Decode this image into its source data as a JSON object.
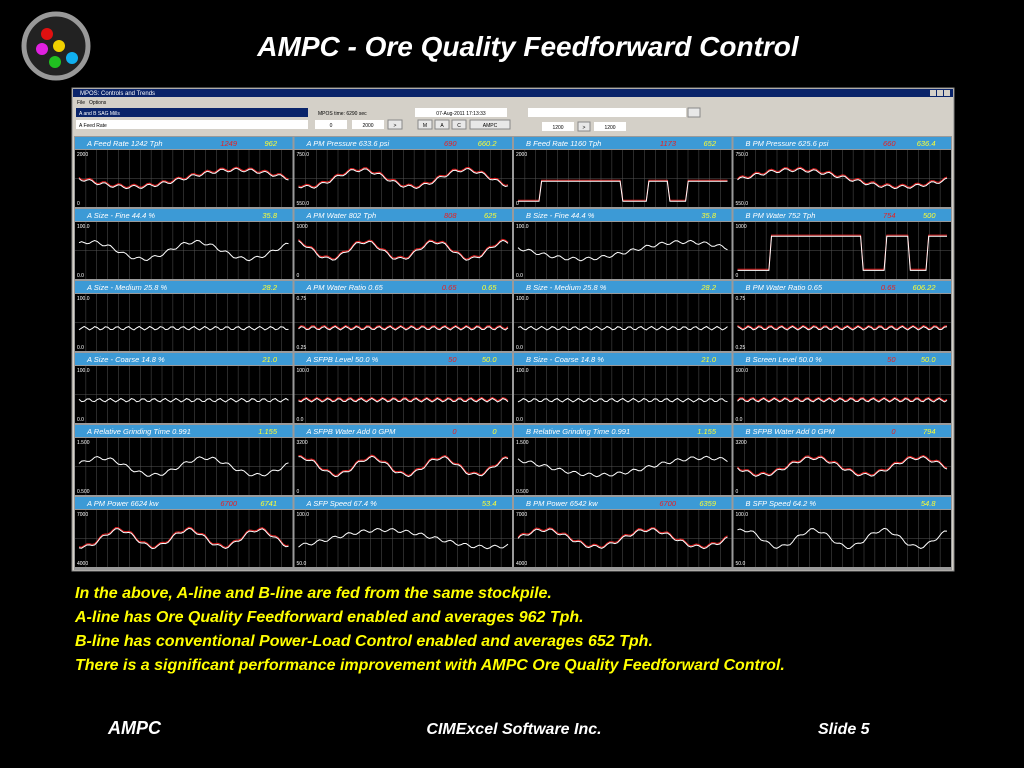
{
  "header": {
    "title": "AMPC - Ore Quality Feedforward Control"
  },
  "window": {
    "title": "MPOS: Controls and Trends",
    "menu": [
      "File",
      "Options"
    ],
    "toolbar": {
      "mill": "A and B SAG Mills",
      "tag": "A Feed Rate",
      "time": "MPOS time: 6290  sec",
      "min": "0",
      "max": "2000",
      "go": ">",
      "date": "07-Aug-2011  17:13:33",
      "modes": [
        "M",
        "A",
        "C"
      ],
      "mode": "AMPC",
      "sp1": "1200",
      "sp2": "1200",
      "go2": ">"
    },
    "panels": [
      {
        "label": "A Feed Rate   1242  Tph",
        "red": "1249",
        "yellow": "962",
        "top": "2000",
        "bottom": "0"
      },
      {
        "label": "A PM Pressure   633.6  psi",
        "red": "690",
        "yellow": "660.2",
        "top": "750.0",
        "bottom": "550.0"
      },
      {
        "label": "B Feed Rate   1160  Tph",
        "red": "1173",
        "yellow": "652",
        "top": "2000",
        "bottom": "0"
      },
      {
        "label": "B PM Pressure   625.6  psi",
        "red": "660",
        "yellow": "636.4",
        "top": "750.0",
        "bottom": "550.0"
      },
      {
        "label": "A Size - Fine   44.4  %",
        "yellow": "35.8",
        "top": "100.0",
        "bottom": "0.0"
      },
      {
        "label": "A PM Water   802  Tph",
        "red": "808",
        "yellow": "625",
        "top": "1000",
        "bottom": "0"
      },
      {
        "label": "B Size - Fine   44.4  %",
        "yellow": "35.8",
        "top": "100.0",
        "bottom": "0.0"
      },
      {
        "label": "B PM Water   752  Tph",
        "red": "754",
        "yellow": "500",
        "top": "1000",
        "bottom": "0"
      },
      {
        "label": "A Size - Medium   25.8  %",
        "yellow": "28.2",
        "top": "100.0",
        "bottom": "0.0"
      },
      {
        "label": "A PM Water Ratio   0.65",
        "red": "0.65",
        "yellow": "0.65",
        "top": "0.75",
        "bottom": "0.25"
      },
      {
        "label": "B Size - Medium   25.8  %",
        "yellow": "28.2",
        "top": "100.0",
        "bottom": "0.0"
      },
      {
        "label": "B PM Water Ratio   0.65",
        "red": "0.65",
        "yellow": "606.22",
        "top": "0.75",
        "bottom": "0.25"
      },
      {
        "label": "A Size - Coarse   14.8  %",
        "yellow": "21.0",
        "top": "100.0",
        "bottom": "0.0"
      },
      {
        "label": "A SFPB Level   50.0  %",
        "red": "50",
        "yellow": "50.0",
        "top": "100.0",
        "bottom": "0.0"
      },
      {
        "label": "B Size - Coarse   14.8  %",
        "yellow": "21.0",
        "top": "100.0",
        "bottom": "0.0"
      },
      {
        "label": "B Screen Level   50.0  %",
        "red": "50",
        "yellow": "50.0",
        "top": "100.0",
        "bottom": "0.0"
      },
      {
        "label": "A Relative Grinding Time   0.991",
        "yellow": "1.155",
        "top": "1.500",
        "bottom": "0.500"
      },
      {
        "label": "A SFPB Water Add   0  GPM",
        "red": "0",
        "yellow": "0",
        "top": "3200",
        "bottom": "0"
      },
      {
        "label": "B Relative Grinding Time   0.991",
        "yellow": "1.155",
        "top": "1.500",
        "bottom": "0.500"
      },
      {
        "label": "B SFPB Water Add   0  GPM",
        "red": "0",
        "yellow": "794",
        "top": "3200",
        "bottom": "0"
      },
      {
        "label": "A PM Power   6624  kw",
        "red": "6700",
        "yellow": "6741",
        "top": "7000",
        "bottom": "4000"
      },
      {
        "label": "A SFP Speed   67.4  %",
        "yellow": "53.4",
        "top": "100.0",
        "bottom": "50.0"
      },
      {
        "label": "B PM Power   6542  kw",
        "red": "6700",
        "yellow": "6359",
        "top": "7000",
        "bottom": "4000"
      },
      {
        "label": "B SFP Speed   64.2  %",
        "yellow": "54.8",
        "top": "100.0",
        "bottom": "50.0"
      }
    ]
  },
  "notes": [
    "In the above, A-line and B-line are fed from the same stockpile.",
    "A-line has Ore Quality Feedforward enabled and averages 962 Tph.",
    "B-line has conventional Power-Load Control enabled and averages 652 Tph.",
    "There is a significant performance improvement with AMPC Ore Quality Feedforward Control."
  ],
  "footer": {
    "left": "AMPC",
    "center": "CIMExcel Software Inc.",
    "right": "Slide 5"
  }
}
